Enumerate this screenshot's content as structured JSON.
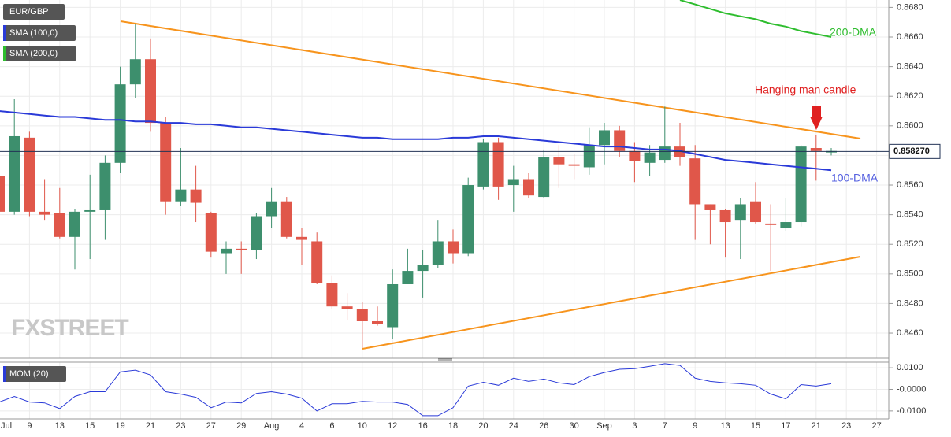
{
  "chart_data": [
    {
      "type": "candlestick",
      "title": "EUR/GBP",
      "categories": [
        "Jul",
        null,
        "9",
        null,
        "13",
        null,
        "15",
        null,
        "19",
        null,
        "21",
        null,
        "23",
        null,
        "27",
        null,
        "29",
        null,
        "Aug",
        null,
        "4",
        null,
        "6",
        null,
        "10",
        null,
        "12",
        null,
        "16",
        null,
        "18",
        null,
        "20",
        null,
        "24",
        null,
        "26",
        null,
        "30",
        null,
        "Sep",
        null,
        "3",
        null,
        "7",
        null,
        "9",
        null,
        "13",
        null,
        "15",
        null,
        "17",
        null,
        "21",
        null,
        "23",
        null,
        "27"
      ],
      "open": [
        0.8566,
        0.8542,
        0.8592,
        0.8542,
        0.8541,
        0.8525,
        0.8542,
        0.8543,
        0.8575,
        0.8628,
        0.8645,
        0.8602,
        0.8549,
        0.8557,
        0.8541,
        0.8514,
        0.8517,
        0.8516,
        0.8539,
        0.8549,
        0.8525,
        0.8522,
        0.8494,
        0.8478,
        0.8476,
        0.8468,
        0.8464,
        0.8493,
        0.8502,
        0.8506,
        0.8522,
        0.8514,
        0.8559,
        0.8589,
        0.856,
        0.8564,
        0.8552,
        0.8579,
        0.8574,
        0.8572,
        0.8587,
        0.8597,
        0.8583,
        0.8575,
        0.8577,
        0.8586,
        0.8578,
        0.8547,
        0.8543,
        0.8536,
        0.8549,
        0.8534,
        0.8531,
        0.8535,
        0.8585,
        0.8582,
        null,
        null,
        null
      ],
      "high": [
        0.8576,
        0.8618,
        0.8596,
        0.8564,
        0.8558,
        0.8544,
        0.8567,
        0.858,
        0.864,
        0.8669,
        0.8659,
        0.8606,
        0.8585,
        0.8573,
        0.8542,
        0.8522,
        0.8522,
        0.8541,
        0.8558,
        0.8552,
        0.8531,
        0.8528,
        0.8499,
        0.8487,
        0.8481,
        0.8478,
        0.8503,
        0.8517,
        0.8516,
        0.8536,
        0.853,
        0.8565,
        0.8591,
        0.8592,
        0.8573,
        0.8568,
        0.8584,
        0.8587,
        0.8581,
        0.8599,
        0.8602,
        0.86,
        0.8589,
        0.8587,
        0.8613,
        0.8602,
        0.8587,
        0.8547,
        0.8544,
        0.8551,
        0.8562,
        0.8547,
        0.8551,
        0.8587,
        0.8594,
        0.8585,
        null,
        null,
        null
      ],
      "low": [
        0.8539,
        0.854,
        0.8539,
        0.8536,
        0.8524,
        0.8503,
        0.851,
        0.8523,
        0.8568,
        0.8619,
        0.8596,
        0.854,
        0.8546,
        0.8535,
        0.8511,
        0.85,
        0.85,
        0.851,
        0.8531,
        0.8524,
        0.8506,
        0.8493,
        0.8476,
        0.8469,
        0.845,
        0.8465,
        0.8456,
        0.8493,
        0.8484,
        0.8504,
        0.8507,
        0.8512,
        0.8557,
        0.855,
        0.8542,
        0.8551,
        0.8551,
        0.8558,
        0.8564,
        0.8567,
        0.8574,
        0.8579,
        0.8562,
        0.8566,
        0.8575,
        0.8573,
        0.8523,
        0.852,
        0.8511,
        0.851,
        0.8534,
        0.8502,
        0.8529,
        0.8532,
        0.8563,
        0.858,
        null,
        null,
        null
      ],
      "close": [
        0.8542,
        0.8593,
        0.8542,
        0.854,
        0.8525,
        0.8542,
        0.8543,
        0.8575,
        0.8628,
        0.8645,
        0.8602,
        0.8549,
        0.8557,
        0.8548,
        0.8515,
        0.8517,
        0.8516,
        0.8539,
        0.8549,
        0.8525,
        0.8523,
        0.8494,
        0.8478,
        0.8476,
        0.8468,
        0.8466,
        0.8493,
        0.8502,
        0.8506,
        0.8522,
        0.8514,
        0.856,
        0.8589,
        0.8559,
        0.8564,
        0.8553,
        0.8579,
        0.8574,
        0.8573,
        0.8587,
        0.8597,
        0.8583,
        0.8576,
        0.8582,
        0.8586,
        0.8579,
        0.8547,
        0.8543,
        0.8535,
        0.8547,
        0.8535,
        0.8533,
        0.8535,
        0.8586,
        0.8583,
        0.8583,
        null,
        null,
        null
      ],
      "up_color": "#3d8f6d",
      "down_color": "#e0574a",
      "ylim": [
        0.8443,
        0.8685
      ],
      "yticks": [
        {
          "value": 0.846,
          "label": "0.8460"
        },
        {
          "value": 0.848,
          "label": "0.8480"
        },
        {
          "value": 0.85,
          "label": "0.8500"
        },
        {
          "value": 0.852,
          "label": "0.8520"
        },
        {
          "value": 0.854,
          "label": "0.8540"
        },
        {
          "value": 0.856,
          "label": "0.8560"
        },
        {
          "value": 0.858,
          "label": "0.8580"
        },
        {
          "value": 0.86,
          "label": "0.8600"
        },
        {
          "value": 0.862,
          "label": "0.8620"
        },
        {
          "value": 0.864,
          "label": "0.8640"
        },
        {
          "value": 0.866,
          "label": "0.8660"
        },
        {
          "value": 0.868,
          "label": "0.8680"
        }
      ],
      "grid": true,
      "overlays": [
        {
          "name": "SMA (100,0)",
          "color": "#2a3ad8",
          "values": [
            0.861,
            0.8609,
            0.8608,
            0.8607,
            0.8606,
            0.8606,
            0.8605,
            0.8604,
            0.8604,
            0.8603,
            0.8603,
            0.8602,
            0.8602,
            0.8601,
            0.8601,
            0.86,
            0.8599,
            0.8599,
            0.8598,
            0.8597,
            0.8596,
            0.8595,
            0.8594,
            0.8593,
            0.8592,
            0.8592,
            0.8591,
            0.8591,
            0.8591,
            0.8591,
            0.8592,
            0.8592,
            0.8593,
            0.8593,
            0.8592,
            0.8591,
            0.859,
            0.8589,
            0.8588,
            0.8587,
            0.8586,
            0.8586,
            0.8585,
            0.8584,
            0.8584,
            0.8583,
            0.8581,
            0.8579,
            0.8577,
            0.8576,
            0.8575,
            0.8574,
            0.8573,
            0.8572,
            0.8571,
            0.857,
            null,
            null,
            null
          ]
        },
        {
          "name": "SMA (200,0)",
          "color": "#2ebd2e",
          "values": [
            null,
            null,
            null,
            null,
            null,
            null,
            null,
            null,
            null,
            null,
            null,
            null,
            null,
            null,
            null,
            null,
            null,
            null,
            null,
            null,
            null,
            null,
            null,
            null,
            null,
            null,
            null,
            null,
            null,
            null,
            null,
            null,
            null,
            null,
            null,
            null,
            null,
            null,
            null,
            null,
            null,
            null,
            null,
            null,
            null,
            0.8685,
            0.8682,
            0.8679,
            0.8676,
            0.8674,
            0.8672,
            0.8669,
            0.8667,
            0.8664,
            0.8662,
            0.866,
            null,
            null,
            null
          ]
        }
      ],
      "annotations": [
        {
          "text": "200-DMA",
          "color": "#2ebd2e"
        },
        {
          "text": "100-DMA",
          "color": "#5560e0"
        },
        {
          "text": "Hanging man candle",
          "color": "#e02020"
        }
      ],
      "last_price": {
        "value": 0.85827,
        "label": "0.858270"
      },
      "watermark": "FXSTREET"
    },
    {
      "type": "line",
      "series": [
        {
          "name": "MOM (20)",
          "color": "#2a3ad8",
          "values": [
            -0.0059,
            -0.0033,
            -0.0059,
            -0.0063,
            -0.0089,
            -0.0033,
            -0.0011,
            -0.0011,
            0.0081,
            0.0089,
            0.0067,
            -0.0011,
            -0.0022,
            -0.0037,
            -0.0085,
            -0.0059,
            -0.0063,
            -0.0019,
            -0.0011,
            -0.0022,
            -0.0041,
            -0.01,
            -0.0067,
            -0.0067,
            -0.0056,
            -0.0059,
            -0.0059,
            -0.007,
            -0.0122,
            -0.0122,
            -0.0085,
            0.0015,
            0.0033,
            0.0019,
            0.0052,
            0.0037,
            0.0048,
            0.003,
            0.0022,
            0.0059,
            0.0078,
            0.0093,
            0.0096,
            0.0107,
            0.0119,
            0.0111,
            0.0052,
            0.0037,
            0.003,
            0.0026,
            0.0019,
            -0.0022,
            -0.0044,
            0.0022,
            0.0015,
            0.0026,
            null,
            null,
            null
          ]
        }
      ],
      "ylim": [
        -0.0137,
        0.0126
      ],
      "yticks": [
        {
          "value": -0.01,
          "label": "-0.0100"
        },
        {
          "value": 0,
          "label": "-0.0000"
        },
        {
          "value": 0.01,
          "label": "0.0100"
        }
      ],
      "grid": true
    }
  ]
}
